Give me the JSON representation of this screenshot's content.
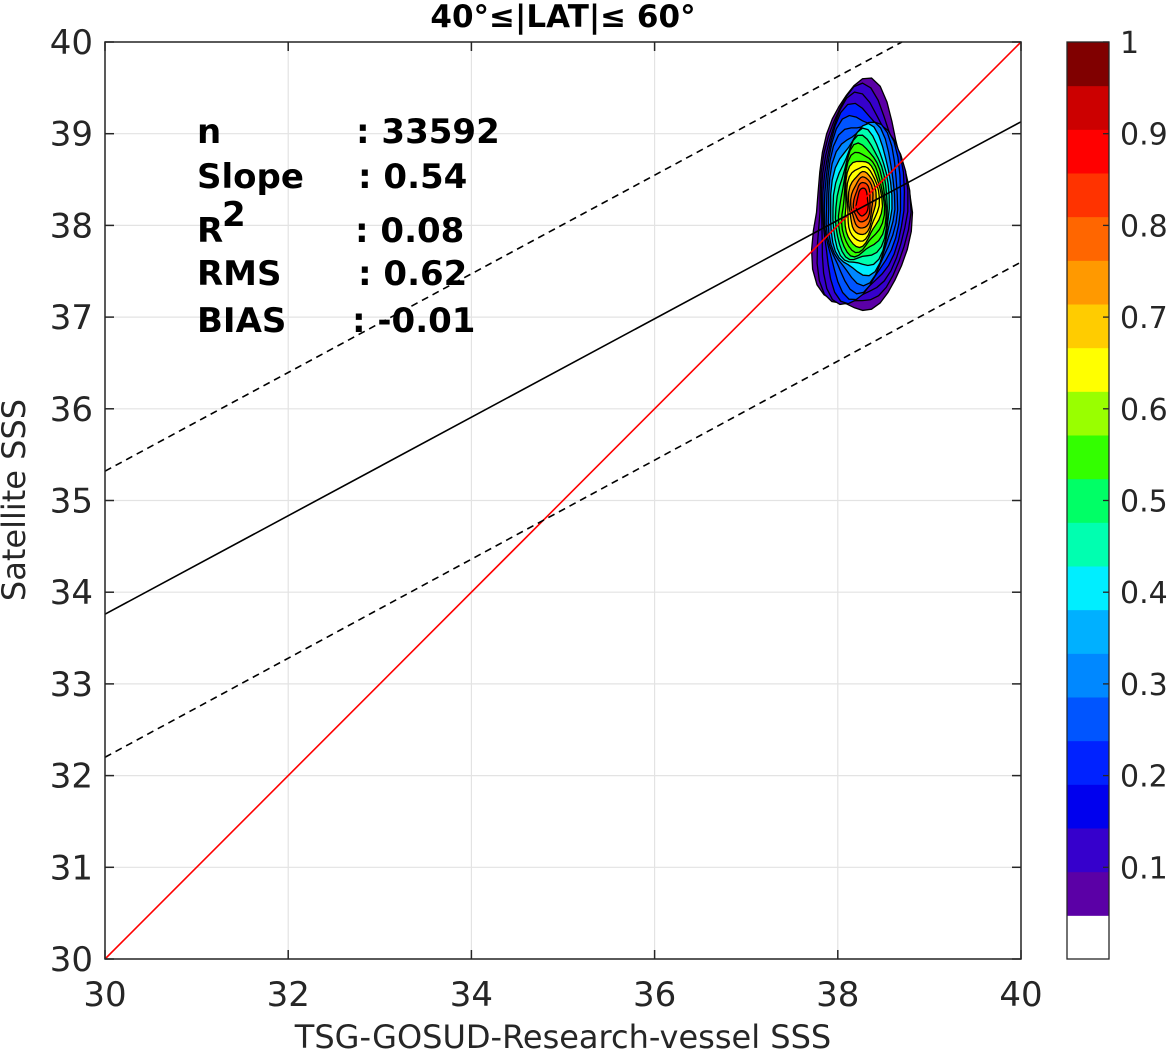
{
  "chart_data": {
    "type": "scatter",
    "title": "40°≤|LAT|≤ 60°",
    "xlabel": "TSG-GOSUD-Research-vessel SSS",
    "ylabel": "Satellite SSS",
    "xlim": [
      30,
      40
    ],
    "ylim": [
      30,
      40
    ],
    "xticks": [
      "30",
      "32",
      "34",
      "36",
      "38",
      "40"
    ],
    "yticks": [
      "30",
      "31",
      "32",
      "33",
      "34",
      "35",
      "36",
      "37",
      "38",
      "39",
      "40"
    ],
    "grid": true,
    "stats": [
      {
        "label": "n",
        "value": ": 33592"
      },
      {
        "label": "Slope",
        "value": ": 0.54"
      },
      {
        "label": "R",
        "sup": "2",
        "value": ": 0.08"
      },
      {
        "label": "RMS",
        "value": ": 0.62"
      },
      {
        "label": "BIAS",
        "value": ": -0.01"
      }
    ],
    "lines": [
      {
        "role": "one-to-one",
        "color": "#ff0000",
        "style": "solid",
        "x": [
          30,
          40
        ],
        "y": [
          30,
          40
        ]
      },
      {
        "role": "regression",
        "color": "#000000",
        "style": "solid",
        "x": [
          30,
          40
        ],
        "y": [
          33.76,
          39.13
        ]
      },
      {
        "role": "upper-bound",
        "color": "#000000",
        "style": "dashed",
        "x": [
          30,
          38.7
        ],
        "y": [
          35.32,
          40
        ]
      },
      {
        "role": "lower-bound",
        "color": "#000000",
        "style": "dashed",
        "x": [
          30,
          40
        ],
        "y": [
          32.2,
          37.6
        ]
      }
    ],
    "density_contours": {
      "center": [
        38.27,
        38.25
      ],
      "levels": [
        0.05,
        0.1,
        0.15,
        0.2,
        0.25,
        0.3,
        0.35,
        0.4,
        0.45,
        0.5,
        0.55,
        0.6,
        0.65,
        0.7,
        0.75,
        0.8,
        0.85,
        0.9
      ]
    },
    "colorbar": {
      "ticks": [
        "0.1",
        "0.2",
        "0.3",
        "0.4",
        "0.5",
        "0.6",
        "0.7",
        "0.8",
        "0.9",
        "1"
      ],
      "range": [
        0,
        1
      ],
      "colors": [
        "#ffffff",
        "#5b00a6",
        "#3600cc",
        "#0000ee",
        "#0022ff",
        "#0055ff",
        "#0088ff",
        "#00b0ff",
        "#00eeff",
        "#00ffb0",
        "#00ff66",
        "#33ff00",
        "#99ff00",
        "#ffff00",
        "#ffcc00",
        "#ff9900",
        "#ff6600",
        "#ff3300",
        "#ff0000",
        "#cc0000",
        "#800000"
      ]
    }
  }
}
